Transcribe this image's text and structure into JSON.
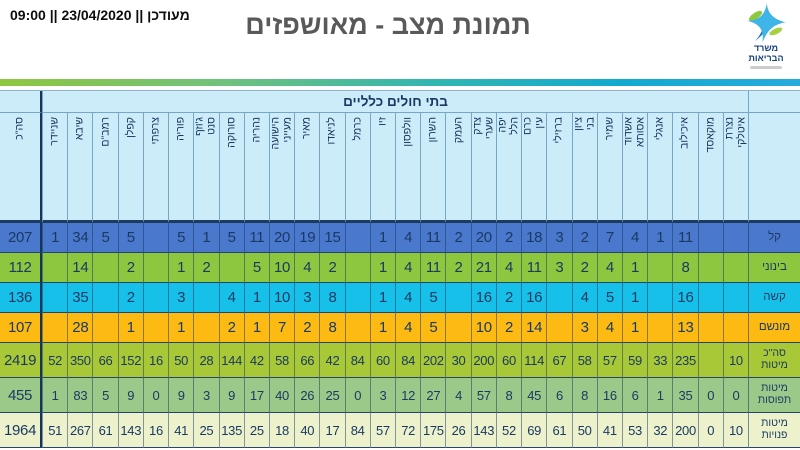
{
  "logo": {
    "name": "משרד הבריאות"
  },
  "chart_data": {
    "type": "table",
    "title": "תמונת מצב - מאושפזים",
    "updated": "מעודכן || 23/04/2020 || 09:00",
    "group_header": "בתי חולים כלליים",
    "total_column_label": "סה\"כ",
    "columns_rtl": [
      "איטלקי נצרת",
      "מוקאסד",
      "איכילוב",
      "אנגלי",
      "אסותא אשדוד",
      "שמיר",
      "בני ציון",
      "ברזילי",
      "עין כרם",
      "הלל יפה",
      "שערי צדק",
      "העמק",
      "השרון",
      "וולפסון",
      "זיו",
      "כרמל",
      "לניאדו",
      "מאיר",
      "מעייני הישועה",
      "נהריה",
      "סורוקה",
      "סנט ג'וזף",
      "פוריה",
      "צרפתי",
      "קפלן",
      "רמב\"ם",
      "שיבא",
      "שניידר"
    ],
    "rows": [
      {
        "label": "קל",
        "total": "207",
        "color": "#4978cd",
        "values_rtl": [
          "",
          "",
          "11",
          "1",
          "4",
          "7",
          "2",
          "3",
          "18",
          "2",
          "20",
          "2",
          "11",
          "4",
          "1",
          "",
          "15",
          "19",
          "20",
          "11",
          "5",
          "1",
          "5",
          "",
          "5",
          "5",
          "34",
          "1"
        ]
      },
      {
        "label": "בינוני",
        "total": "112",
        "color": "#8dc63f",
        "values_rtl": [
          "",
          "",
          "8",
          "",
          "1",
          "4",
          "2",
          "3",
          "11",
          "4",
          "21",
          "2",
          "11",
          "4",
          "1",
          "",
          "2",
          "4",
          "10",
          "5",
          "",
          "2",
          "1",
          "",
          "2",
          "",
          "14",
          ""
        ]
      },
      {
        "label": "קשה",
        "total": "136",
        "color": "#17c0e9",
        "values_rtl": [
          "",
          "",
          "16",
          "",
          "1",
          "5",
          "4",
          "",
          "16",
          "2",
          "16",
          "",
          "5",
          "4",
          "1",
          "",
          "8",
          "3",
          "10",
          "1",
          "4",
          "",
          "3",
          "",
          "2",
          "",
          "35",
          ""
        ]
      },
      {
        "label": "מונשם",
        "total": "107",
        "color": "#fcba12",
        "values_rtl": [
          "",
          "",
          "13",
          "",
          "1",
          "4",
          "3",
          "",
          "14",
          "2",
          "10",
          "",
          "5",
          "4",
          "1",
          "",
          "8",
          "2",
          "7",
          "1",
          "2",
          "",
          "1",
          "",
          "1",
          "",
          "28",
          ""
        ]
      },
      {
        "label": "סה\"כ מיטות",
        "total": "2419",
        "color": "#a9c837",
        "values_rtl": [
          "10",
          "",
          "235",
          "33",
          "59",
          "57",
          "58",
          "67",
          "114",
          "60",
          "200",
          "30",
          "202",
          "84",
          "60",
          "84",
          "42",
          "66",
          "58",
          "42",
          "144",
          "28",
          "50",
          "16",
          "152",
          "66",
          "350",
          "52"
        ]
      },
      {
        "label": "מיטות תפוסות",
        "total": "455",
        "color": "#9bc989",
        "values_rtl": [
          "0",
          "0",
          "35",
          "1",
          "6",
          "16",
          "8",
          "6",
          "45",
          "8",
          "57",
          "4",
          "27",
          "12",
          "3",
          "0",
          "25",
          "26",
          "40",
          "17",
          "9",
          "3",
          "9",
          "0",
          "9",
          "5",
          "83",
          "1"
        ]
      },
      {
        "label": "מיטות פנויות",
        "total": "1964",
        "color": "#edf2cd",
        "values_rtl": [
          "10",
          "0",
          "200",
          "32",
          "53",
          "41",
          "50",
          "61",
          "69",
          "52",
          "143",
          "26",
          "175",
          "72",
          "57",
          "84",
          "17",
          "40",
          "18",
          "25",
          "135",
          "25",
          "41",
          "16",
          "143",
          "61",
          "267",
          "51"
        ]
      }
    ],
    "layout": {
      "header_bg": "#cdecf9",
      "text_color": "#17365d",
      "columns_read_direction": "rtl"
    }
  }
}
